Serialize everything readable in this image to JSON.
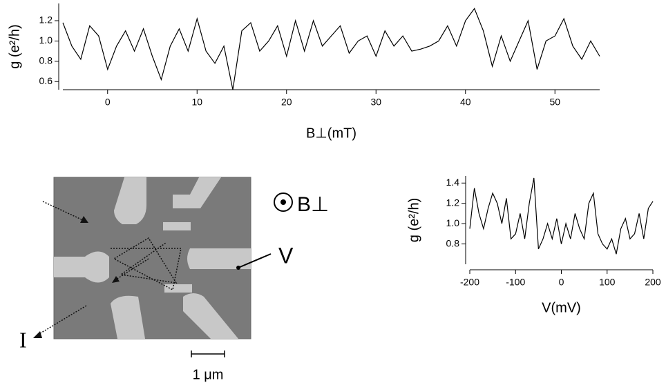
{
  "chart_data": [
    {
      "type": "line",
      "x_label": "B⊥(mT)",
      "y_label": "g (e²/h)",
      "color": "#000000",
      "x": [
        -5,
        -4,
        -3,
        -2,
        -1,
        0,
        1,
        2,
        3,
        4,
        5,
        6,
        7,
        8,
        9,
        10,
        11,
        12,
        13,
        14,
        15,
        16,
        17,
        18,
        19,
        20,
        21,
        22,
        23,
        24,
        25,
        26,
        27,
        28,
        29,
        30,
        31,
        32,
        33,
        34,
        35,
        36,
        37,
        38,
        39,
        40,
        41,
        42,
        43,
        44,
        45,
        46,
        47,
        48,
        49,
        50,
        51,
        52,
        53,
        54,
        55
      ],
      "values": [
        1.18,
        0.95,
        0.82,
        1.15,
        1.05,
        0.72,
        0.95,
        1.1,
        0.9,
        1.12,
        0.85,
        0.62,
        0.95,
        1.12,
        0.9,
        1.22,
        0.9,
        0.78,
        0.95,
        0.52,
        1.1,
        1.18,
        0.9,
        1.0,
        1.15,
        0.85,
        1.2,
        0.9,
        1.2,
        0.95,
        1.05,
        1.15,
        0.88,
        1.0,
        1.05,
        0.85,
        1.1,
        0.95,
        1.05,
        0.9,
        0.92,
        0.95,
        1.0,
        1.15,
        0.95,
        1.2,
        1.32,
        1.1,
        0.75,
        1.05,
        0.8,
        1.0,
        1.2,
        0.72,
        1.0,
        1.05,
        1.22,
        0.95,
        0.82,
        1.0,
        0.85
      ],
      "xlim": [
        -5,
        55
      ],
      "xticks": [
        0,
        10,
        20,
        30,
        40,
        50
      ],
      "ylim": [
        0.52,
        1.37
      ],
      "yticks": [
        0.6,
        0.8,
        {
          "value": 1.0,
          "label": "1.0"
        },
        1.2
      ]
    },
    {
      "type": "line",
      "x_label": "V(mV)",
      "y_label": "g (e²/h)",
      "color": "#000000",
      "x": [
        -200,
        -190,
        -180,
        -170,
        -160,
        -150,
        -140,
        -130,
        -120,
        -110,
        -100,
        -90,
        -80,
        -70,
        -60,
        -50,
        -40,
        -30,
        -20,
        -10,
        0,
        10,
        20,
        30,
        40,
        50,
        60,
        70,
        80,
        90,
        100,
        110,
        120,
        130,
        140,
        150,
        160,
        170,
        180,
        190,
        200
      ],
      "values": [
        0.95,
        1.35,
        1.1,
        0.95,
        1.15,
        1.3,
        1.2,
        1.0,
        1.25,
        0.85,
        0.9,
        1.1,
        0.85,
        1.2,
        1.45,
        0.75,
        0.85,
        1.0,
        0.85,
        1.05,
        0.8,
        1.0,
        0.85,
        1.1,
        0.95,
        0.85,
        1.2,
        1.3,
        0.9,
        0.8,
        0.75,
        0.85,
        0.7,
        0.95,
        1.05,
        0.85,
        0.9,
        1.1,
        0.85,
        1.15,
        1.22
      ],
      "xlim": [
        -200,
        200
      ],
      "xticks": [
        -200,
        -100,
        0,
        100,
        200
      ],
      "ylim": [
        0.6,
        1.47
      ],
      "yticks": [
        0.8,
        {
          "value": 1.0,
          "label": "1.0"
        },
        1.2,
        1.4
      ]
    }
  ],
  "figure": {
    "field_label": "B⊥",
    "voltage_label": "V",
    "current_label": "I",
    "scale_label": "1 μm"
  }
}
